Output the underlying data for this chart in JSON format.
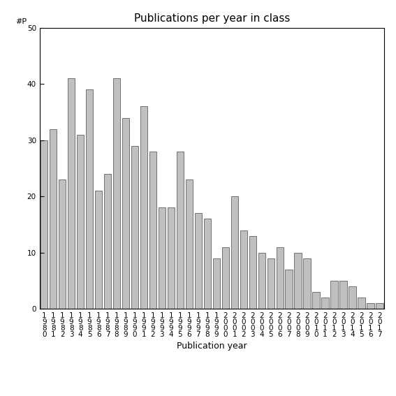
{
  "title": "Publications per year in class",
  "xlabel": "Publication year",
  "ylabel": "#P",
  "ylim": [
    0,
    50
  ],
  "bar_color": "#c0c0c0",
  "bar_edgecolor": "#606060",
  "categories": [
    "1\n9\n8\n0",
    "1\n9\n8\n1",
    "1\n9\n8\n2",
    "1\n9\n8\n3",
    "1\n9\n8\n4",
    "1\n9\n8\n5",
    "1\n9\n8\n6",
    "1\n9\n8\n7",
    "1\n9\n8\n8",
    "1\n9\n8\n9",
    "1\n9\n9\n0",
    "1\n9\n9\n1",
    "1\n9\n9\n2",
    "1\n9\n9\n3",
    "1\n9\n9\n4",
    "1\n9\n9\n5",
    "1\n9\n9\n6",
    "1\n9\n9\n7",
    "1\n9\n9\n8",
    "1\n9\n9\n9",
    "2\n0\n0\n0",
    "2\n0\n0\n1",
    "2\n0\n0\n2",
    "2\n0\n0\n3",
    "2\n0\n0\n4",
    "2\n0\n0\n5",
    "2\n0\n0\n6",
    "2\n0\n0\n7",
    "2\n0\n0\n8",
    "2\n0\n0\n9",
    "2\n0\n1\n0",
    "2\n0\n1\n1",
    "2\n0\n1\n2",
    "2\n0\n1\n3",
    "2\n0\n1\n4",
    "2\n0\n1\n5",
    "2\n0\n1\n6",
    "2\n0\n1\n7"
  ],
  "values": [
    30,
    32,
    23,
    41,
    31,
    39,
    21,
    24,
    41,
    34,
    29,
    36,
    28,
    18,
    18,
    28,
    23,
    17,
    16,
    9,
    11,
    20,
    14,
    13,
    10,
    9,
    11,
    7,
    10,
    9,
    3,
    2,
    5,
    5,
    4,
    2,
    1,
    1
  ],
  "yticks": [
    0,
    10,
    20,
    30,
    40,
    50
  ],
  "title_fontsize": 11,
  "axis_fontsize": 9,
  "tick_fontsize": 7.5
}
